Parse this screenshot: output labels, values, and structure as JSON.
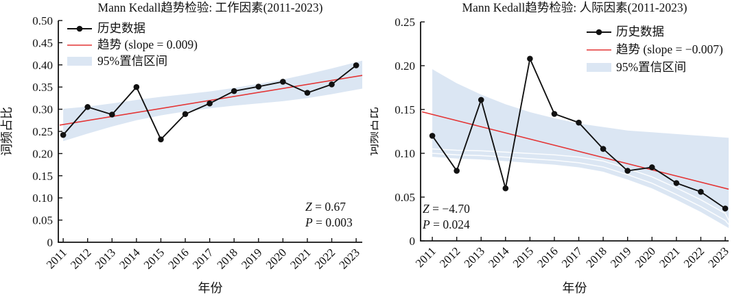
{
  "figure": {
    "background": "#ffffff",
    "panel_count": 2
  },
  "chart_data": [
    {
      "type": "line",
      "title": "Mann Kedall趋势检验: 工作因素(2011-2023)",
      "xlabel": "年份",
      "ylabel": "词频占比",
      "x": [
        2011,
        2012,
        2013,
        2014,
        2015,
        2016,
        2017,
        2018,
        2019,
        2020,
        2021,
        2022,
        2023
      ],
      "series": [
        {
          "name": "历史数据",
          "values": [
            0.242,
            0.305,
            0.288,
            0.35,
            0.232,
            0.289,
            0.313,
            0.341,
            0.351,
            0.362,
            0.337,
            0.356,
            0.399
          ]
        }
      ],
      "trend": {
        "label": "趋势 (slope = 0.009)",
        "slope": 0.009,
        "start": 0.266,
        "end": 0.374
      },
      "ci": {
        "label": "95%置信区间",
        "lower": [
          0.228,
          0.245,
          0.261,
          0.275,
          0.286,
          0.295,
          0.302,
          0.308,
          0.313,
          0.318,
          0.325,
          0.334,
          0.344
        ],
        "upper": [
          0.301,
          0.306,
          0.313,
          0.321,
          0.328,
          0.334,
          0.34,
          0.348,
          0.357,
          0.367,
          0.379,
          0.392,
          0.406
        ]
      },
      "ylim": [
        0,
        0.5
      ],
      "yticks": [
        0,
        0.05,
        0.1,
        0.15,
        0.2,
        0.25,
        0.3,
        0.35,
        0.4,
        0.45,
        0.5
      ],
      "legend_position": "upper-left",
      "annotation": {
        "position": "lower-right",
        "lines": [
          {
            "var": "Z",
            "rest": " = 0.67"
          },
          {
            "var": "P",
            "rest": " = 0.003"
          }
        ]
      },
      "colors": {
        "series": "#111111",
        "trend": "#e43434",
        "ci": "#dbe6f3"
      }
    },
    {
      "type": "line",
      "title": "Mann Kedall趋势检验: 人际因素(2011-2023)",
      "xlabel": "年份",
      "ylabel": "词频占比",
      "x": [
        2011,
        2012,
        2013,
        2014,
        2015,
        2016,
        2017,
        2018,
        2019,
        2020,
        2021,
        2022,
        2023
      ],
      "series": [
        {
          "name": "历史数据",
          "values": [
            0.12,
            0.08,
            0.161,
            0.06,
            0.208,
            0.145,
            0.135,
            0.105,
            0.08,
            0.084,
            0.066,
            0.056,
            0.037
          ]
        }
      ],
      "trend": {
        "label": "趋势 (slope = −0.007)",
        "slope": -0.007,
        "start": 0.144,
        "end": 0.063
      },
      "ci": {
        "label": "95%置信区间",
        "lower": [
          0.096,
          0.094,
          0.093,
          0.091,
          0.089,
          0.087,
          0.084,
          0.079,
          0.07,
          0.06,
          0.047,
          0.033,
          0.017
        ],
        "upper": [
          0.196,
          0.18,
          0.167,
          0.156,
          0.147,
          0.14,
          0.134,
          0.13,
          0.126,
          0.124,
          0.122,
          0.12,
          0.118
        ]
      },
      "ylim": [
        0,
        0.25
      ],
      "yticks": [
        0,
        0.05,
        0.1,
        0.15,
        0.2,
        0.25
      ],
      "legend_position": "upper-right",
      "annotation": {
        "position": "lower-left",
        "lines": [
          {
            "var": "Z",
            "rest": " = −4.70"
          },
          {
            "var": "P",
            "rest": " = 0.024"
          }
        ]
      },
      "colors": {
        "series": "#111111",
        "trend": "#e43434",
        "ci": "#dbe6f3"
      }
    }
  ]
}
